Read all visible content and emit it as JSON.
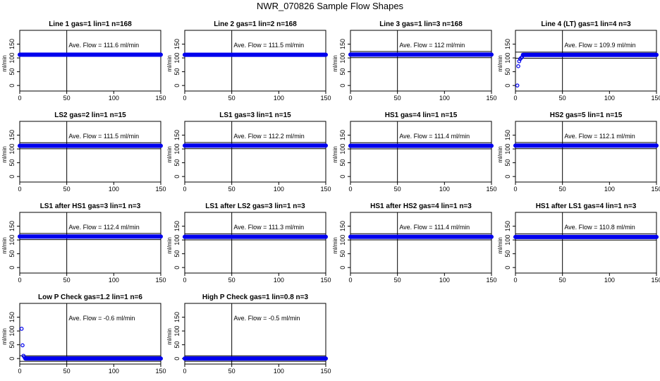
{
  "title": "NWR_070826  Sample Flow Shapes",
  "chart_data": [
    {
      "type": "scatter",
      "title": "Line 1 gas=1 lin=1 n=168",
      "ylabel": "ml/min",
      "annotation": "Ave. Flow =  111.6  ml/min",
      "xlim": [
        0,
        150
      ],
      "ylim": [
        -20,
        200
      ],
      "xticks": [
        0,
        50,
        100,
        150
      ],
      "yticks": [
        0,
        50,
        100,
        150
      ],
      "hlines": [],
      "vline": 50,
      "series": [
        {
          "pattern": "flat",
          "level": 111.6,
          "points": []
        }
      ]
    },
    {
      "type": "scatter",
      "title": "Line 2 gas=1 lin=2 n=168",
      "ylabel": "ml/min",
      "annotation": "Ave. Flow =  111.5  ml/min",
      "xlim": [
        0,
        150
      ],
      "ylim": [
        -20,
        200
      ],
      "xticks": [
        0,
        50,
        100,
        150
      ],
      "yticks": [
        0,
        50,
        100,
        150
      ],
      "hlines": [],
      "vline": 50,
      "series": [
        {
          "pattern": "flat",
          "level": 111.5,
          "points": []
        }
      ]
    },
    {
      "type": "scatter",
      "title": "Line 3 gas=1 lin=3 n=168",
      "ylabel": "ml/min",
      "annotation": "Ave. Flow =  112  ml/min",
      "xlim": [
        0,
        150
      ],
      "ylim": [
        -20,
        200
      ],
      "xticks": [
        0,
        50,
        100,
        150
      ],
      "yticks": [
        0,
        50,
        100,
        150
      ],
      "hlines": [
        100.8,
        123.2
      ],
      "vline": 50,
      "series": [
        {
          "pattern": "flat",
          "level": 112,
          "points": []
        }
      ]
    },
    {
      "type": "scatter",
      "title": "Line 4 (LT) gas=1 lin=4 n=3",
      "ylabel": "ml/min",
      "annotation": "Ave. Flow =  109.9  ml/min",
      "xlim": [
        0,
        150
      ],
      "ylim": [
        -20,
        200
      ],
      "xticks": [
        0,
        50,
        100,
        150
      ],
      "yticks": [
        0,
        50,
        100,
        150
      ],
      "hlines": [
        99,
        121
      ],
      "vline": 50,
      "series": [
        {
          "pattern": "flat",
          "level": 111,
          "points": [
            [
              2,
              0
            ],
            [
              3,
              70
            ],
            [
              4,
              88
            ],
            [
              5,
              96
            ],
            [
              6,
              100
            ],
            [
              7,
              103
            ]
          ]
        }
      ]
    },
    {
      "type": "scatter",
      "title": "LS2 gas=2 lin=1 n=15",
      "ylabel": "ml/min",
      "annotation": "Ave. Flow =  111.5  ml/min",
      "xlim": [
        0,
        150
      ],
      "ylim": [
        -20,
        200
      ],
      "xticks": [
        0,
        50,
        100,
        150
      ],
      "yticks": [
        0,
        50,
        100,
        150
      ],
      "hlines": [
        100.4,
        122.7
      ],
      "vline": 50,
      "series": [
        {
          "pattern": "flat",
          "level": 111.5,
          "points": []
        }
      ]
    },
    {
      "type": "scatter",
      "title": "LS1 gas=3 lin=1 n=15",
      "ylabel": "ml/min",
      "annotation": "Ave. Flow =  112.2  ml/min",
      "xlim": [
        0,
        150
      ],
      "ylim": [
        -20,
        200
      ],
      "xticks": [
        0,
        50,
        100,
        150
      ],
      "yticks": [
        0,
        50,
        100,
        150
      ],
      "hlines": [
        101,
        123.4
      ],
      "vline": 50,
      "series": [
        {
          "pattern": "flat",
          "level": 112.2,
          "points": []
        }
      ]
    },
    {
      "type": "scatter",
      "title": "HS1 gas=4 lin=1 n=15",
      "ylabel": "ml/min",
      "annotation": "Ave. Flow =  111.4  ml/min",
      "xlim": [
        0,
        150
      ],
      "ylim": [
        -20,
        200
      ],
      "xticks": [
        0,
        50,
        100,
        150
      ],
      "yticks": [
        0,
        50,
        100,
        150
      ],
      "hlines": [
        100.3,
        122.5
      ],
      "vline": 50,
      "series": [
        {
          "pattern": "flat",
          "level": 111.4,
          "points": []
        }
      ]
    },
    {
      "type": "scatter",
      "title": "HS2 gas=5 lin=1 n=15",
      "ylabel": "ml/min",
      "annotation": "Ave. Flow =  112.1  ml/min",
      "xlim": [
        0,
        150
      ],
      "ylim": [
        -20,
        200
      ],
      "xticks": [
        0,
        50,
        100,
        150
      ],
      "yticks": [
        0,
        50,
        100,
        150
      ],
      "hlines": [
        100.9,
        123.3
      ],
      "vline": 50,
      "series": [
        {
          "pattern": "flat",
          "level": 112.1,
          "points": []
        }
      ]
    },
    {
      "type": "scatter",
      "title": "LS1 after HS1 gas=3 lin=1 n=3",
      "ylabel": "ml/min",
      "annotation": "Ave. Flow =  112.4  ml/min",
      "xlim": [
        0,
        150
      ],
      "ylim": [
        -20,
        200
      ],
      "xticks": [
        0,
        50,
        100,
        150
      ],
      "yticks": [
        0,
        50,
        100,
        150
      ],
      "hlines": [
        101.2,
        123.6
      ],
      "vline": 50,
      "series": [
        {
          "pattern": "flat",
          "level": 112.4,
          "points": []
        }
      ]
    },
    {
      "type": "scatter",
      "title": "LS1 after LS2 gas=3 lin=1 n=3",
      "ylabel": "ml/min",
      "annotation": "Ave. Flow =  111.3  ml/min",
      "xlim": [
        0,
        150
      ],
      "ylim": [
        -20,
        200
      ],
      "xticks": [
        0,
        50,
        100,
        150
      ],
      "yticks": [
        0,
        50,
        100,
        150
      ],
      "hlines": [
        100.2,
        122.4
      ],
      "vline": 50,
      "series": [
        {
          "pattern": "flat",
          "level": 111.3,
          "points": []
        }
      ]
    },
    {
      "type": "scatter",
      "title": "HS1 after HS2 gas=4 lin=1 n=3",
      "ylabel": "ml/min",
      "annotation": "Ave. Flow =  111.4  ml/min",
      "xlim": [
        0,
        150
      ],
      "ylim": [
        -20,
        200
      ],
      "xticks": [
        0,
        50,
        100,
        150
      ],
      "yticks": [
        0,
        50,
        100,
        150
      ],
      "hlines": [
        100.3,
        122.5
      ],
      "vline": 50,
      "series": [
        {
          "pattern": "flat",
          "level": 111.4,
          "points": []
        }
      ]
    },
    {
      "type": "scatter",
      "title": "HS1 after LS1 gas=4 lin=1 n=3",
      "ylabel": "ml/min",
      "annotation": "Ave. Flow =  110.8  ml/min",
      "xlim": [
        0,
        150
      ],
      "ylim": [
        -20,
        200
      ],
      "xticks": [
        0,
        50,
        100,
        150
      ],
      "yticks": [
        0,
        50,
        100,
        150
      ],
      "hlines": [
        99.7,
        121.9
      ],
      "vline": 50,
      "series": [
        {
          "pattern": "flat",
          "level": 110.8,
          "points": []
        }
      ]
    },
    {
      "type": "scatter",
      "title": "Low P Check gas=1.2 lin=1 n=6",
      "ylabel": "ml/min",
      "annotation": "Ave. Flow =  -0.6  ml/min",
      "xlim": [
        0,
        150
      ],
      "ylim": [
        -20,
        200
      ],
      "xticks": [
        0,
        50,
        100,
        150
      ],
      "yticks": [
        0,
        50,
        100,
        150
      ],
      "hlines": [
        -10,
        10
      ],
      "vline": 50,
      "series": [
        {
          "pattern": "flat",
          "level": 0,
          "points": [
            [
              2,
              108
            ],
            [
              3,
              48
            ],
            [
              4,
              10
            ],
            [
              5,
              5
            ]
          ]
        }
      ]
    },
    {
      "type": "scatter",
      "title": "High P Check gas=1 lin=0.8 n=3",
      "ylabel": "ml/min",
      "annotation": "Ave. Flow =  -0.5  ml/min",
      "xlim": [
        0,
        150
      ],
      "ylim": [
        -20,
        200
      ],
      "xticks": [
        0,
        50,
        100,
        150
      ],
      "yticks": [
        0,
        50,
        100,
        150
      ],
      "hlines": [
        -10,
        10
      ],
      "vline": 50,
      "series": [
        {
          "pattern": "flat",
          "level": 0,
          "points": []
        }
      ]
    }
  ]
}
